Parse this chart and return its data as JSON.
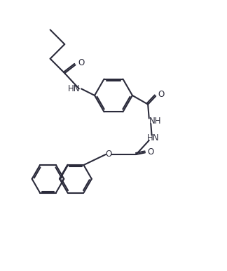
{
  "bg_color": "#ffffff",
  "line_color": "#2b2b3b",
  "line_width": 1.5,
  "font_size": 8.5,
  "figsize": [
    3.24,
    3.86
  ],
  "dpi": 100,
  "xlim": [
    0,
    10
  ],
  "ylim": [
    0,
    12
  ]
}
